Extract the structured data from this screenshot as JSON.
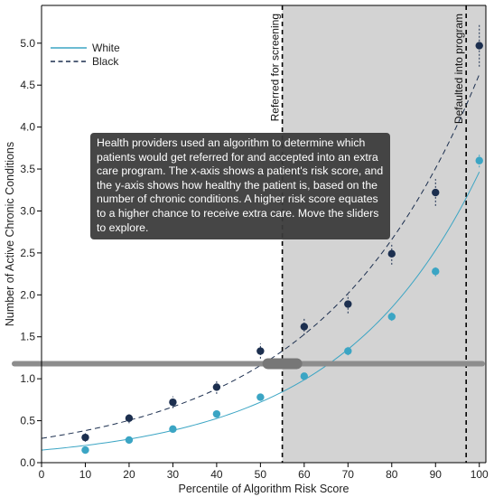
{
  "chart_data": {
    "type": "scatter",
    "xlabel": "Percentile of Algorithm Risk Score",
    "ylabel": "Number of Active Chronic Conditions",
    "xlim": [
      0,
      101.5
    ],
    "ylim": [
      0,
      5.45
    ],
    "xticks": [
      "0",
      "10",
      "20",
      "30",
      "40",
      "50",
      "60",
      "70",
      "80",
      "90",
      "100"
    ],
    "yticks": [
      "0.0",
      "0.5",
      "1.0",
      "1.5",
      "2.0",
      "2.5",
      "3.0",
      "3.5",
      "4.0",
      "4.5",
      "5.0"
    ],
    "grid": false,
    "legend_position": "top-left",
    "series": [
      {
        "name": "White",
        "color": "#3ba5c4",
        "line_style": "solid",
        "x": [
          10,
          20,
          30,
          40,
          50,
          60,
          70,
          80,
          90,
          100
        ],
        "y": [
          0.15,
          0.27,
          0.4,
          0.58,
          0.78,
          1.03,
          1.33,
          1.74,
          2.28,
          3.6
        ],
        "error": [
          0.02,
          0.02,
          0.03,
          0.03,
          0.04,
          0.04,
          0.05,
          0.05,
          0.06,
          0.08
        ]
      },
      {
        "name": "Black",
        "color": "#1c2f4f",
        "line_style": "dashed",
        "x": [
          10,
          20,
          30,
          40,
          50,
          60,
          70,
          80,
          90,
          100
        ],
        "y": [
          0.3,
          0.53,
          0.72,
          0.9,
          1.33,
          1.62,
          1.89,
          2.49,
          3.22,
          4.97
        ],
        "error": [
          0.05,
          0.06,
          0.07,
          0.08,
          0.09,
          0.1,
          0.11,
          0.13,
          0.16,
          0.25
        ]
      }
    ],
    "fit_curves": [
      {
        "series": "White",
        "a": 0.15,
        "b": 0.0314
      },
      {
        "series": "Black",
        "a": 0.29,
        "b": 0.0277
      }
    ],
    "thresholds": [
      {
        "label": "Referred for screening",
        "x": 55
      },
      {
        "label": "Defaulted into program",
        "x": 97
      }
    ],
    "slider": {
      "y": 1.18,
      "knob_x": 55
    },
    "shaded_region_start_x": 55,
    "shaded_region_color": "#d3d3d3",
    "tooltip": "Health providers used an algorithm to determine which patients would get referred for and accepted into an extra care program. The x-axis shows a patient's risk score, and the y-axis shows how healthy the patient is, based on the number of chronic conditions. A higher risk score equates to a higher chance to receive extra care. Move the sliders to explore."
  }
}
